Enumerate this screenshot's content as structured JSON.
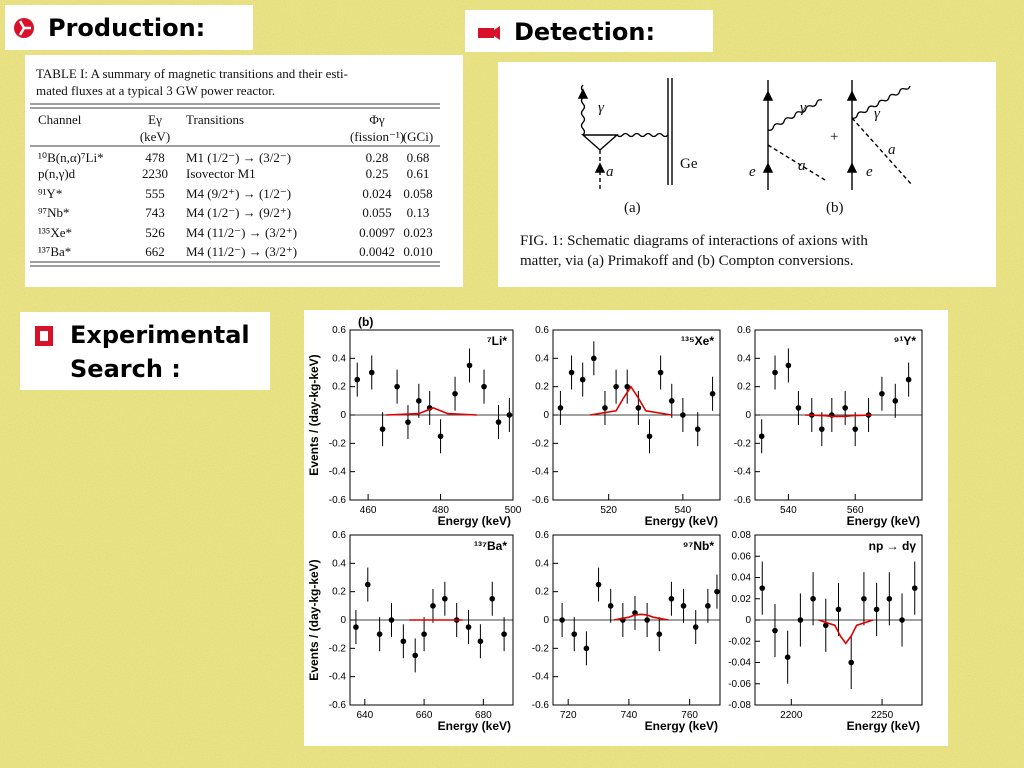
{
  "headings": {
    "production": "Production:",
    "detection": "Detection:",
    "experimental": [
      "Experimental",
      "Search :"
    ]
  },
  "table": {
    "caption": [
      "TABLE I: A summary of magnetic transitions and their esti-",
      "mated fluxes at a typical 3 GW power reactor."
    ],
    "header": [
      [
        "Channel",
        "Eγ",
        "Transitions",
        "Φγ",
        ""
      ],
      [
        "",
        "(keV)",
        "",
        "(fission⁻¹)",
        "(GCi)"
      ]
    ],
    "rows": [
      [
        "¹⁰B(n,α)⁷Li*",
        "478",
        "M1 (1/2⁻) → (3/2⁻)",
        "0.28",
        "0.68"
      ],
      [
        "p(n,γ)d",
        "2230",
        "Isovector M1",
        "0.25",
        "0.61"
      ],
      [
        "⁹¹Y*",
        "555",
        "M4 (9/2⁺) → (1/2⁻)",
        "0.024",
        "0.058"
      ],
      [
        "⁹⁷Nb*",
        "743",
        "M4 (1/2⁻) → (9/2⁺)",
        "0.055",
        "0.13"
      ],
      [
        "¹³⁵Xe*",
        "526",
        "M4 (11/2⁻) → (3/2⁺)",
        "0.0097",
        "0.023"
      ],
      [
        "¹³⁷Ba*",
        "662",
        "M4 (11/2⁻) → (3/2⁺)",
        "0.0042",
        "0.010"
      ]
    ]
  },
  "figure": {
    "labels": {
      "gamma": "γ",
      "axion": "a",
      "ge": "Ge",
      "electron": "e",
      "plus": "+",
      "panel_a": "(a)",
      "panel_b": "(b)"
    },
    "caption": [
      "FIG. 1:  Schematic diagrams of interactions of axions with",
      "matter, via (a) Primakoff and (b) Compton conversions."
    ]
  },
  "plots": {
    "label": "(b)",
    "panels": [
      {
        "label": "⁷Li*",
        "xlabel": "Energy (keV)",
        "ylabel": "Events / (day-kg-keV)",
        "xlim": [
          455,
          500
        ],
        "xticks": [
          460,
          480,
          500
        ],
        "ylim": [
          -0.6,
          0.6
        ],
        "yticks": [
          -0.6,
          -0.4,
          -0.2,
          0,
          0.2,
          0.4,
          0.6
        ],
        "x": [
          457,
          461,
          464,
          468,
          471,
          474,
          477,
          480,
          484,
          488,
          492,
          496,
          499
        ],
        "values": [
          0.25,
          0.3,
          -0.1,
          0.2,
          -0.05,
          0.1,
          0.05,
          -0.15,
          0.15,
          0.35,
          0.2,
          -0.05,
          0.0
        ],
        "error": 0.12,
        "fit": {
          "x": [
            465,
            474,
            476,
            478,
            480,
            482,
            490
          ],
          "values": [
            0,
            0.01,
            0.03,
            0.05,
            0.03,
            0.01,
            0
          ]
        }
      },
      {
        "label": "¹³⁵Xe*",
        "xlabel": "Energy (keV)",
        "xlim": [
          505,
          550
        ],
        "xticks": [
          520,
          540
        ],
        "ylim": [
          -0.6,
          0.6
        ],
        "yticks": [
          -0.6,
          -0.4,
          -0.2,
          0,
          0.2,
          0.4,
          0.6
        ],
        "x": [
          507,
          510,
          513,
          516,
          519,
          522,
          525,
          528,
          531,
          534,
          537,
          540,
          544,
          548
        ],
        "values": [
          0.05,
          0.3,
          0.25,
          0.4,
          0.05,
          0.2,
          0.2,
          0.05,
          -0.15,
          0.3,
          0.1,
          0.0,
          -0.1,
          0.15
        ],
        "error": 0.12,
        "fit": {
          "x": [
            515,
            522,
            524,
            526,
            528,
            530,
            537
          ],
          "values": [
            0,
            0.03,
            0.12,
            0.2,
            0.12,
            0.03,
            0
          ]
        }
      },
      {
        "label": "⁹¹Y*",
        "xlabel": "Energy (keV)",
        "xlim": [
          530,
          580
        ],
        "xticks": [
          540,
          560
        ],
        "ylim": [
          -0.6,
          0.6
        ],
        "yticks": [
          -0.6,
          -0.4,
          -0.2,
          0,
          0.2,
          0.4,
          0.6
        ],
        "x": [
          532,
          536,
          540,
          543,
          547,
          550,
          553,
          557,
          560,
          564,
          568,
          572,
          576
        ],
        "values": [
          -0.15,
          0.3,
          0.35,
          0.05,
          0.0,
          -0.1,
          0.0,
          0.05,
          -0.1,
          0.0,
          0.15,
          0.1,
          0.25
        ],
        "error": 0.12,
        "fit": {
          "x": [
            545,
            551,
            553,
            555,
            557,
            559,
            565
          ],
          "values": [
            0,
            -0.005,
            -0.01,
            -0.01,
            -0.01,
            -0.005,
            0
          ]
        }
      },
      {
        "label": "¹³⁷Ba*",
        "xlabel": "Energy (keV)",
        "ylabel": "Events / (day-kg-keV)",
        "xlim": [
          635,
          690
        ],
        "xticks": [
          640,
          660,
          680
        ],
        "ylim": [
          -0.6,
          0.6
        ],
        "yticks": [
          -0.6,
          -0.4,
          -0.2,
          0,
          0.2,
          0.4,
          0.6
        ],
        "x": [
          637,
          641,
          645,
          649,
          653,
          657,
          660,
          663,
          667,
          671,
          675,
          679,
          683,
          687
        ],
        "values": [
          -0.05,
          0.25,
          -0.1,
          0.0,
          -0.15,
          -0.25,
          -0.1,
          0.1,
          0.15,
          0.0,
          -0.05,
          -0.15,
          0.15,
          -0.1
        ],
        "error": 0.12,
        "fit": {
          "x": [
            655,
            660,
            662,
            664,
            666,
            668,
            673
          ],
          "values": [
            0,
            0,
            0,
            0,
            0,
            0,
            0
          ]
        }
      },
      {
        "label": "⁹⁷Nb*",
        "xlabel": "Energy (keV)",
        "xlim": [
          715,
          770
        ],
        "xticks": [
          720,
          740,
          760
        ],
        "ylim": [
          -0.6,
          0.6
        ],
        "yticks": [
          -0.6,
          -0.4,
          -0.2,
          0,
          0.2,
          0.4,
          0.6
        ],
        "x": [
          718,
          722,
          726,
          730,
          734,
          738,
          742,
          746,
          750,
          754,
          758,
          762,
          766,
          769
        ],
        "values": [
          0.0,
          -0.1,
          -0.2,
          0.25,
          0.1,
          0.0,
          0.05,
          0.0,
          -0.1,
          0.15,
          0.1,
          -0.05,
          0.1,
          0.2
        ],
        "error": 0.12,
        "fit": {
          "x": [
            735,
            740,
            742,
            744,
            746,
            748,
            753
          ],
          "values": [
            0,
            0.02,
            0.035,
            0.04,
            0.035,
            0.02,
            0
          ]
        }
      },
      {
        "label": "np → dγ",
        "xlabel": "Energy (keV)",
        "xlim": [
          2180,
          2272
        ],
        "xticks": [
          2200,
          2250
        ],
        "ylim": [
          -0.08,
          0.08
        ],
        "yticks": [
          -0.08,
          -0.06,
          -0.04,
          -0.02,
          0,
          0.02,
          0.04,
          0.06,
          0.08
        ],
        "x": [
          2184,
          2191,
          2198,
          2205,
          2212,
          2219,
          2226,
          2233,
          2240,
          2247,
          2254,
          2261,
          2268
        ],
        "values": [
          0.03,
          -0.01,
          -0.035,
          0.0,
          0.02,
          -0.005,
          0.01,
          -0.04,
          0.02,
          0.01,
          0.02,
          0.0,
          0.03
        ],
        "error": 0.025,
        "fit": {
          "x": [
            2215,
            2224,
            2227,
            2230,
            2233,
            2236,
            2245
          ],
          "values": [
            0,
            -0.005,
            -0.015,
            -0.022,
            -0.015,
            -0.005,
            0
          ]
        }
      }
    ]
  }
}
